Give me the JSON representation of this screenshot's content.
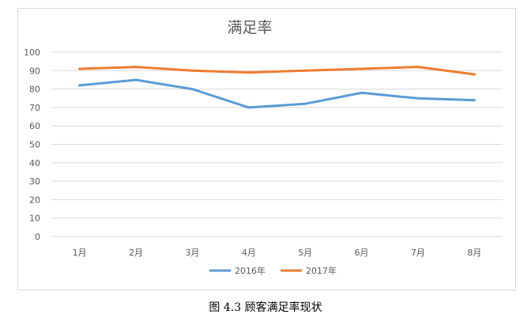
{
  "chart_data": {
    "type": "line",
    "title": "满足率",
    "categories": [
      "1月",
      "2月",
      "3月",
      "4月",
      "5月",
      "6月",
      "7月",
      "8月"
    ],
    "series": [
      {
        "name": "2016年",
        "color": "#5b9bd5",
        "values": [
          82,
          85,
          80,
          70,
          72,
          78,
          75,
          74
        ]
      },
      {
        "name": "2017年",
        "color": "#ed7d31",
        "values": [
          91,
          92,
          90,
          89,
          90,
          91,
          92,
          88
        ]
      }
    ],
    "ylim": [
      0,
      100
    ],
    "yticks": [
      "100",
      "90",
      "80",
      "70",
      "60",
      "50",
      "40",
      "30",
      "20",
      "10",
      "0"
    ],
    "grid": true,
    "legend_position": "bottom"
  },
  "caption": "图  4.3  顾客满足率现状"
}
